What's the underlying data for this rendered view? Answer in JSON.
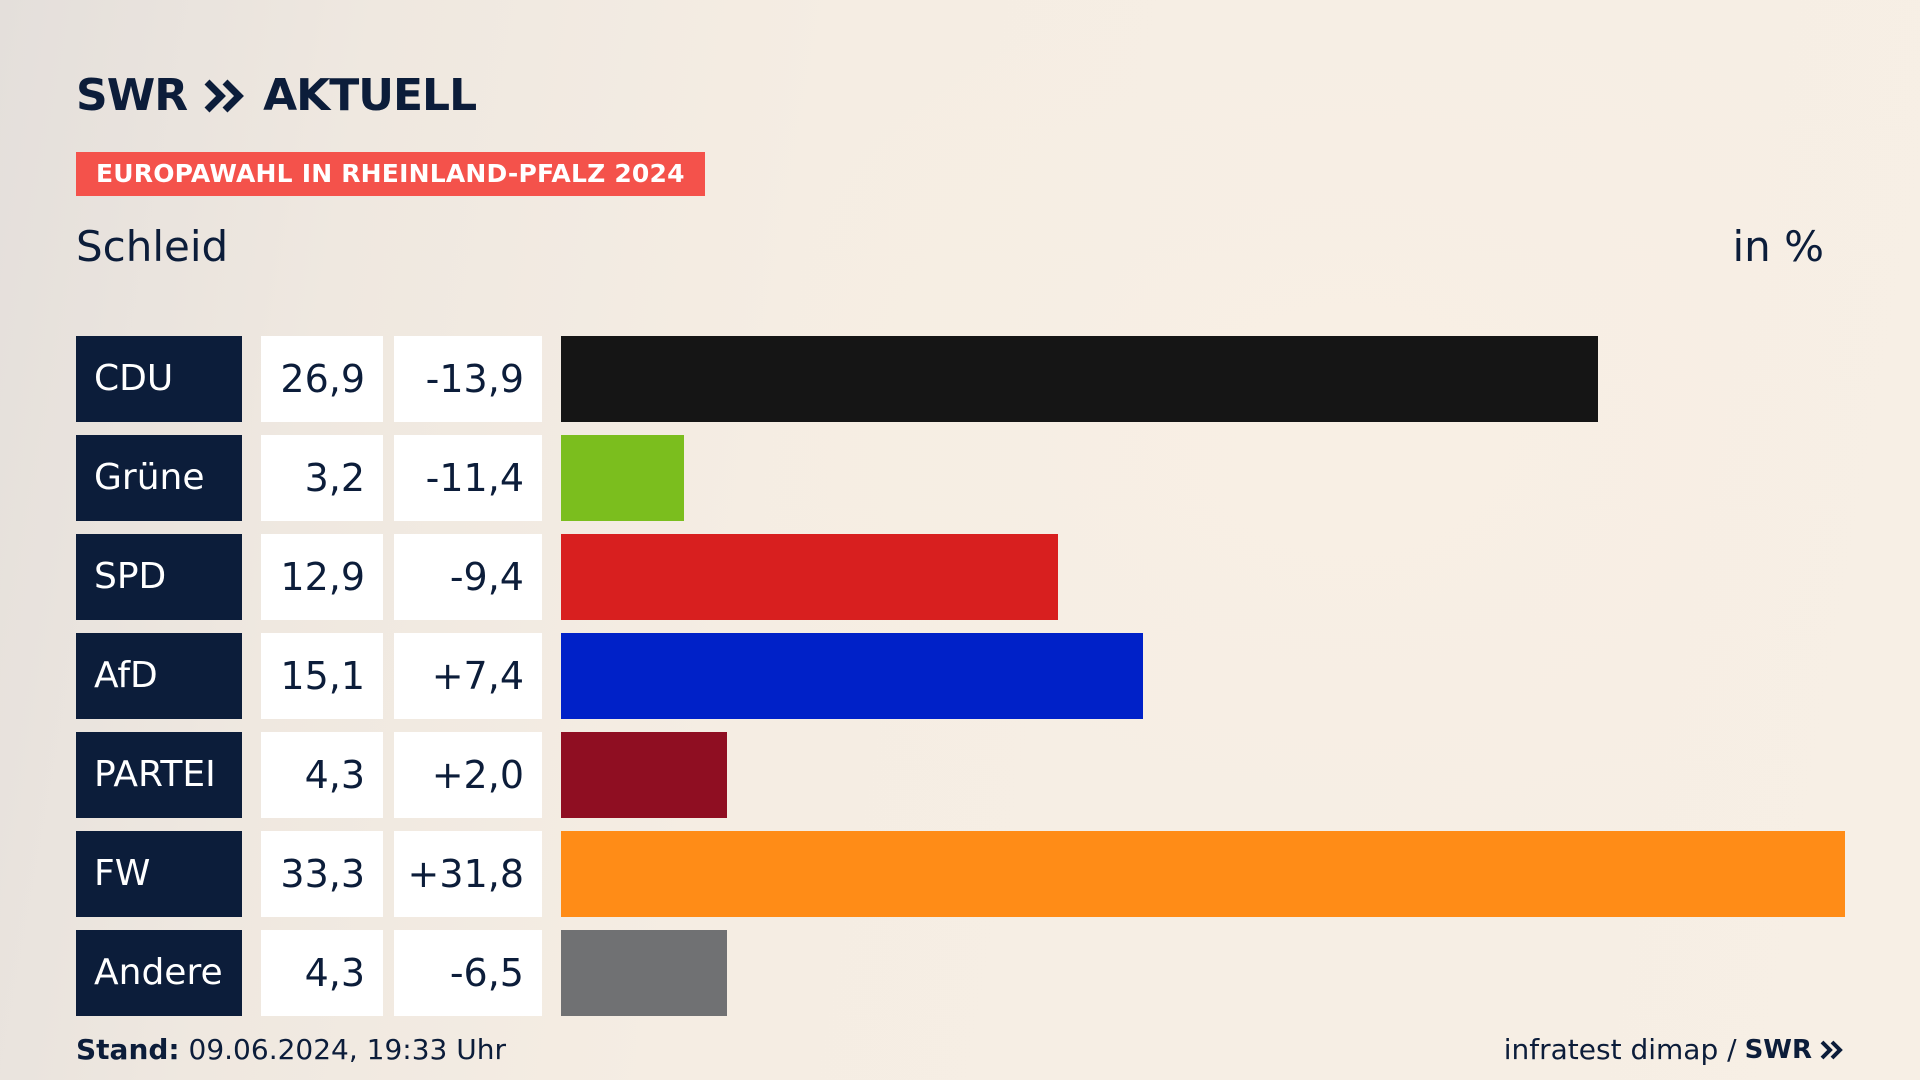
{
  "header": {
    "logo_brand": "SWR",
    "logo_sub": "AKTUELL",
    "badge": "EUROPAWAHL IN RHEINLAND-PFALZ 2024",
    "subtitle": "Schleid",
    "unit": "in %"
  },
  "footer": {
    "stand_label": "Stand:",
    "stand_value": "09.06.2024, 19:33 Uhr",
    "source": "infratest dimap /",
    "source_brand": "SWR"
  },
  "chart_data": {
    "type": "bar",
    "orientation": "horizontal",
    "categories": [
      "CDU",
      "Grüne",
      "SPD",
      "AfD",
      "PARTEI",
      "FW",
      "Andere"
    ],
    "values": [
      26.9,
      3.2,
      12.9,
      15.1,
      4.3,
      33.3,
      4.3
    ],
    "value_labels": [
      "26,9",
      "3,2",
      "12,9",
      "15,1",
      "4,3",
      "33,3",
      "4,3"
    ],
    "changes": [
      -13.9,
      -11.4,
      -9.4,
      7.4,
      2.0,
      31.8,
      -6.5
    ],
    "change_labels": [
      "-13,9",
      "-11,4",
      "-9,4",
      "+7,4",
      "+2,0",
      "+31,8",
      "-6,5"
    ],
    "colors": [
      "#151515",
      "#7bbe1e",
      "#d81f1f",
      "#0021c8",
      "#8f0e22",
      "#ff8c17",
      "#707173"
    ],
    "xlim": [
      0,
      33.3
    ]
  }
}
